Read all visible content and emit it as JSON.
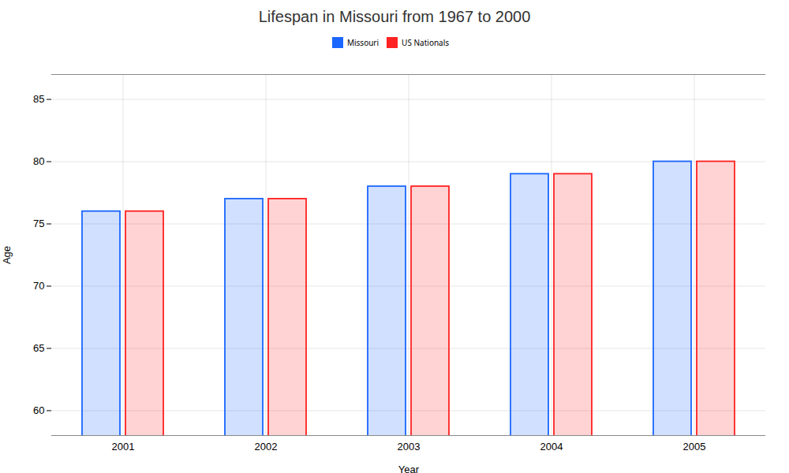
{
  "chart_data": {
    "type": "bar",
    "title": "Lifespan in Missouri from 1967 to 2000",
    "xlabel": "Year",
    "ylabel": "Age",
    "categories": [
      "2001",
      "2002",
      "2003",
      "2004",
      "2005"
    ],
    "series": [
      {
        "name": "Missouri",
        "color": "#1a66ff",
        "values": [
          76.0,
          77.0,
          78.0,
          79.0,
          80.0
        ]
      },
      {
        "name": "US Nationals",
        "color": "#ff2222",
        "values": [
          76.0,
          77.0,
          78.0,
          79.0,
          80.0
        ]
      }
    ],
    "ylim": [
      58,
      87
    ],
    "yticks": [
      60,
      65,
      70,
      75,
      80,
      85
    ],
    "grid": true,
    "legend": "top"
  }
}
